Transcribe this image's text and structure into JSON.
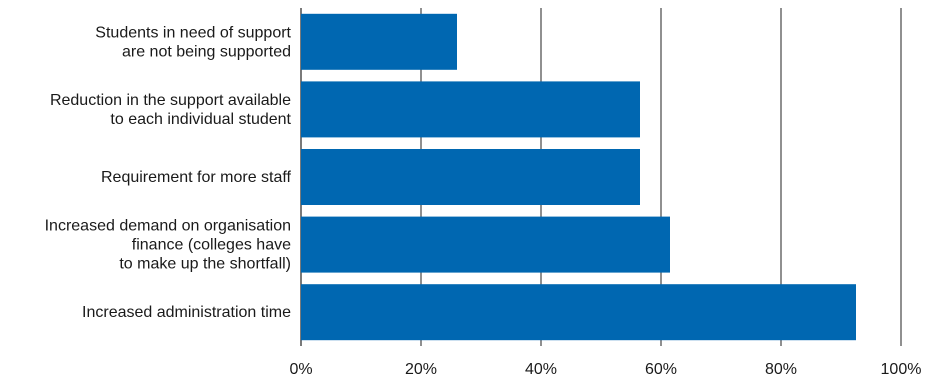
{
  "chart_data": {
    "type": "bar",
    "orientation": "horizontal",
    "categories": [
      [
        "Students in need of support",
        "are not being supported"
      ],
      [
        "Reduction in the support available",
        "to each individual student"
      ],
      [
        "Requirement for more staff"
      ],
      [
        "Increased demand on organisation",
        "finance (colleges have",
        "to make up the shortfall)"
      ],
      [
        "Increased administration time"
      ]
    ],
    "values": [
      26,
      56.5,
      56.5,
      61.5,
      92.5
    ],
    "xlim": [
      0,
      100
    ],
    "xticks": [
      0,
      20,
      40,
      60,
      80,
      100
    ],
    "tick_suffix": "%",
    "title": "",
    "xlabel": "",
    "ylabel": "",
    "grid": "vertical",
    "bar_color": "#0067b1"
  }
}
